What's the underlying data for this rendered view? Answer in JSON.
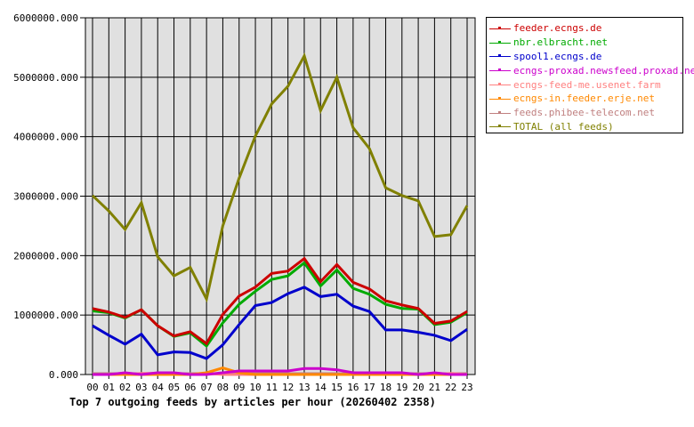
{
  "chart_data": {
    "type": "line",
    "title": "Top 7 outgoing feeds by articles per hour (20260402 2358)",
    "xlabel": "",
    "ylabel": "",
    "ylim": [
      0,
      6000000
    ],
    "grid": true,
    "legend_position": "right",
    "yticks": [
      "0.000",
      "1000000.000",
      "2000000.000",
      "3000000.000",
      "4000000.000",
      "5000000.000",
      "6000000.000"
    ],
    "categories": [
      "00",
      "01",
      "02",
      "03",
      "04",
      "05",
      "06",
      "07",
      "08",
      "09",
      "10",
      "11",
      "12",
      "13",
      "14",
      "15",
      "16",
      "17",
      "18",
      "19",
      "20",
      "21",
      "22",
      "23"
    ],
    "series": [
      {
        "name": "feeder.ecngs.de",
        "color": "#cc0000",
        "values": [
          1110000,
          1050000,
          960000,
          1090000,
          820000,
          650000,
          720000,
          520000,
          1010000,
          1320000,
          1470000,
          1700000,
          1740000,
          1950000,
          1560000,
          1850000,
          1550000,
          1440000,
          1240000,
          1170000,
          1110000,
          860000,
          900000,
          1060000
        ]
      },
      {
        "name": "nbr.elbracht.net",
        "color": "#00aa00",
        "values": [
          1070000,
          1040000,
          950000,
          1090000,
          820000,
          640000,
          700000,
          480000,
          870000,
          1180000,
          1400000,
          1600000,
          1660000,
          1880000,
          1490000,
          1760000,
          1450000,
          1350000,
          1180000,
          1110000,
          1100000,
          840000,
          880000,
          1040000
        ]
      },
      {
        "name": "spool1.ecngs.de",
        "color": "#0000cc",
        "values": [
          820000,
          660000,
          510000,
          680000,
          330000,
          380000,
          370000,
          270000,
          500000,
          840000,
          1160000,
          1210000,
          1360000,
          1470000,
          1310000,
          1350000,
          1150000,
          1060000,
          750000,
          750000,
          710000,
          660000,
          570000,
          760000
        ]
      },
      {
        "name": "ecngs-proxad.newsfeed.proxad.net",
        "color": "#cc00cc",
        "values": [
          0,
          0,
          30000,
          0,
          30000,
          30000,
          0,
          0,
          30000,
          60000,
          60000,
          60000,
          60000,
          100000,
          100000,
          80000,
          30000,
          30000,
          30000,
          30000,
          0,
          30000,
          0,
          0
        ]
      },
      {
        "name": "ecngs-feed-me.usenet.farm",
        "color": "#ff8080",
        "values": [
          0,
          0,
          0,
          20000,
          20000,
          0,
          0,
          20000,
          0,
          0,
          0,
          0,
          0,
          0,
          0,
          0,
          0,
          0,
          0,
          0,
          0,
          0,
          20000,
          0
        ]
      },
      {
        "name": "ecngs-in.feeder.erje.net",
        "color": "#ff8800",
        "values": [
          0,
          0,
          0,
          0,
          0,
          0,
          0,
          30000,
          110000,
          30000,
          0,
          0,
          0,
          0,
          0,
          0,
          0,
          0,
          0,
          0,
          0,
          0,
          0,
          0
        ]
      },
      {
        "name": "feeds.phibee-telecom.net",
        "color": "#c08080",
        "values": [
          15000,
          15000,
          15000,
          15000,
          15000,
          15000,
          15000,
          15000,
          15000,
          15000,
          15000,
          15000,
          15000,
          15000,
          15000,
          15000,
          15000,
          15000,
          15000,
          15000,
          15000,
          15000,
          15000,
          15000
        ]
      },
      {
        "name": "TOTAL (all feeds)",
        "color": "#808000",
        "values": [
          3010000,
          2750000,
          2440000,
          2890000,
          1980000,
          1660000,
          1800000,
          1270000,
          2500000,
          3300000,
          4010000,
          4550000,
          4850000,
          5360000,
          4440000,
          5000000,
          4150000,
          3800000,
          3140000,
          3010000,
          2920000,
          2320000,
          2350000,
          2840000
        ]
      }
    ]
  },
  "legend": {
    "items": [
      {
        "label": "feeder.ecngs.de",
        "color": "#cc0000"
      },
      {
        "label": "nbr.elbracht.net",
        "color": "#00aa00"
      },
      {
        "label": "spool1.ecngs.de",
        "color": "#0000cc"
      },
      {
        "label": "ecngs-proxad.newsfeed.proxad.net",
        "color": "#cc00cc"
      },
      {
        "label": "ecngs-feed-me.usenet.farm",
        "color": "#ff8080"
      },
      {
        "label": "ecngs-in.feeder.erje.net",
        "color": "#ff8800"
      },
      {
        "label": "feeds.phibee-telecom.net",
        "color": "#c08080"
      },
      {
        "label": "TOTAL (all feeds)",
        "color": "#808000"
      }
    ]
  },
  "caption": "Top 7 outgoing feeds by articles per hour (20260402 2358)",
  "colors": {
    "plot_background": "#e0e0e0",
    "grid": "#000000"
  }
}
